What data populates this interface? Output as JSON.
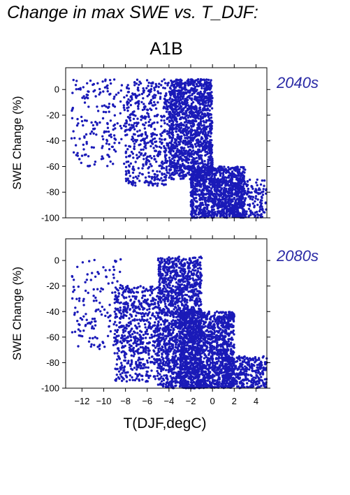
{
  "figure": {
    "title": "Change in max SWE vs. T_DJF:",
    "scenario": "A1B",
    "xlabel": "T(DJF,degC)"
  },
  "colors": {
    "points": "#1a1ab8",
    "panel_label": "#2a2aa6"
  },
  "chart_data": [
    {
      "type": "scatter",
      "panel_label": "2040s",
      "ylabel": "SWE Change (%)",
      "xlim": [
        -13.5,
        5
      ],
      "ylim": [
        -100,
        17
      ],
      "x_ticks": [
        -12,
        -10,
        -8,
        -6,
        -4,
        -2,
        0,
        2,
        4
      ],
      "y_ticks": [
        0,
        -20,
        -40,
        -60,
        -80,
        -100
      ],
      "grid": false,
      "clusters": [
        {
          "x_range": [
            -13,
            -8
          ],
          "y_range": [
            -60,
            8
          ],
          "n": 180
        },
        {
          "x_range": [
            -8,
            -4
          ],
          "y_range": [
            -75,
            8
          ],
          "n": 500
        },
        {
          "x_range": [
            -4,
            0
          ],
          "y_range": [
            -70,
            8
          ],
          "n": 1400
        },
        {
          "x_range": [
            -2,
            3
          ],
          "y_range": [
            -100,
            -60
          ],
          "n": 1000
        },
        {
          "x_range": [
            0,
            5
          ],
          "y_range": [
            -100,
            -70
          ],
          "n": 300
        }
      ]
    },
    {
      "type": "scatter",
      "panel_label": "2080s",
      "ylabel": "SWE Change (%)",
      "xlim": [
        -13.5,
        5
      ],
      "ylim": [
        -100,
        17
      ],
      "x_ticks": [
        -12,
        -10,
        -8,
        -6,
        -4,
        -2,
        0,
        2,
        4
      ],
      "x_tick_labels": [
        "−12",
        "−10",
        "−8",
        "−6",
        "−4",
        "−2",
        "0",
        "2",
        "4"
      ],
      "y_ticks": [
        0,
        -20,
        -40,
        -60,
        -80,
        -100
      ],
      "grid": false,
      "clusters": [
        {
          "x_range": [
            -13,
            -8
          ],
          "y_range": [
            -70,
            2
          ],
          "n": 150
        },
        {
          "x_range": [
            -9,
            -5
          ],
          "y_range": [
            -95,
            -20
          ],
          "n": 600
        },
        {
          "x_range": [
            -5,
            -1
          ],
          "y_range": [
            -100,
            3
          ],
          "n": 1500
        },
        {
          "x_range": [
            -3,
            2
          ],
          "y_range": [
            -100,
            -40
          ],
          "n": 1500
        },
        {
          "x_range": [
            1,
            5
          ],
          "y_range": [
            -100,
            -75
          ],
          "n": 350
        }
      ]
    }
  ]
}
